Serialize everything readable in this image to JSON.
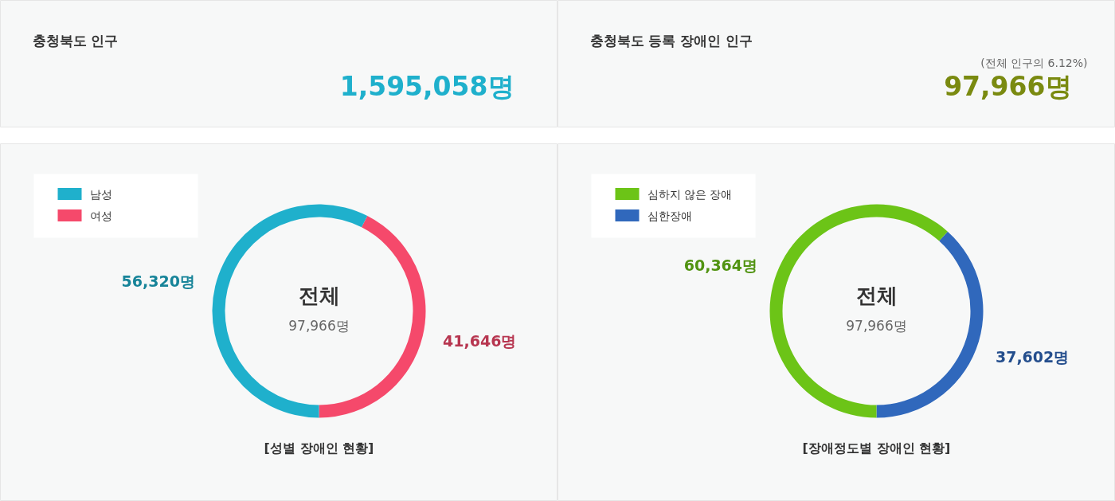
{
  "chart_data": [
    {
      "type": "other",
      "title": "충청북도 인구",
      "annotations": [
        "1,595,058명"
      ],
      "colors": [
        "#1fb0cc"
      ]
    },
    {
      "type": "other",
      "title": "충청북도 등록 장애인 인구",
      "annotations": [
        "(전체 인구의 6.12%)",
        "97,966명"
      ],
      "colors": [
        "#666666",
        "#7a8a10"
      ]
    },
    {
      "type": "donut",
      "title": "[성별 장애인 현황]",
      "categories": [
        "남성",
        "여성"
      ],
      "values": [
        56320,
        41646
      ],
      "colors": [
        "#1fb0cc",
        "#f5496b"
      ],
      "value_labels": [
        "56,320명",
        "41,646명"
      ],
      "annotations": [
        "전체",
        "97,966명"
      ],
      "legend": "top left"
    },
    {
      "type": "donut",
      "title": "[장애정도별 장애인 현황]",
      "categories": [
        "심하지 않은 장애",
        "심한장애"
      ],
      "values": [
        60364,
        37602
      ],
      "colors": [
        "#6cc417",
        "#3068bc"
      ],
      "value_labels": [
        "60,364명",
        "37,602명"
      ],
      "annotations": [
        "전체",
        "97,966명"
      ],
      "legend": "top left"
    }
  ]
}
